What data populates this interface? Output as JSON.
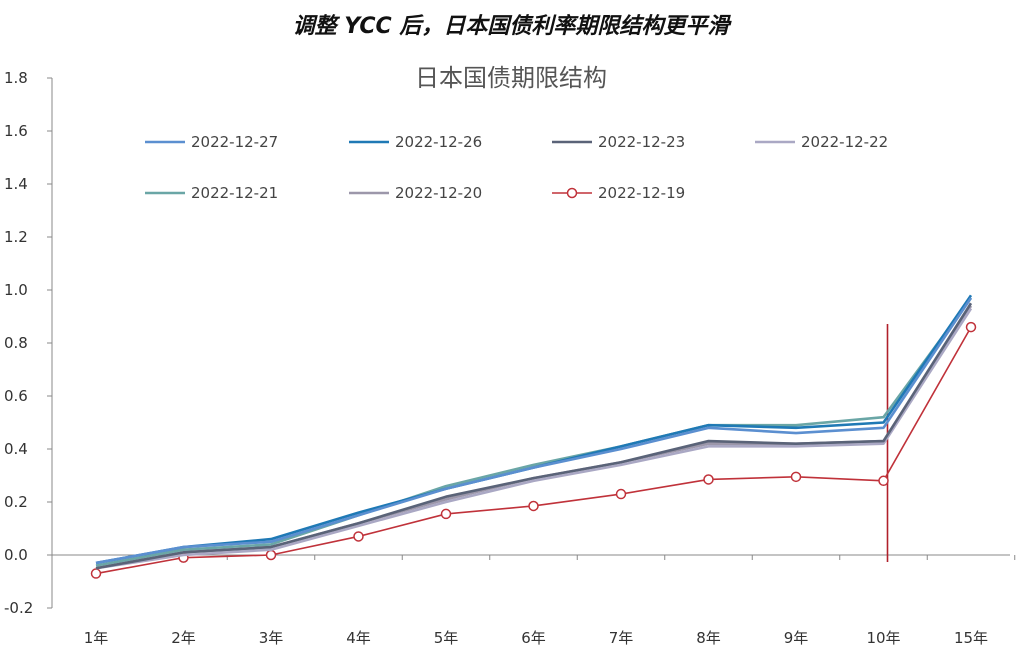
{
  "headline": "调整 YCC 后，日本国债利率期限结构更平滑",
  "chart_data": {
    "type": "line",
    "title": "日本国债期限结构",
    "xlabel": "",
    "ylabel": "",
    "categories": [
      "1年",
      "2年",
      "3年",
      "4年",
      "5年",
      "6年",
      "7年",
      "8年",
      "9年",
      "10年",
      "15年"
    ],
    "ylim": [
      -0.2,
      1.8
    ],
    "yticks": [
      "1.8",
      "1.6",
      "1.4",
      "1.2",
      "1.0",
      "0.8",
      "0.6",
      "0.4",
      "0.2",
      "0.0",
      "-0.2"
    ],
    "grid": false,
    "legend": "top",
    "vline_category": "10年",
    "series": [
      {
        "name": "2022-12-27",
        "color": "#5b8fd0",
        "markers": false,
        "values": [
          -0.03,
          0.03,
          0.05,
          0.15,
          0.25,
          0.33,
          0.4,
          0.48,
          0.46,
          0.48,
          0.97
        ]
      },
      {
        "name": "2022-12-26",
        "color": "#1f79b5",
        "markers": false,
        "values": [
          -0.03,
          0.03,
          0.06,
          0.16,
          0.25,
          0.33,
          0.41,
          0.49,
          0.48,
          0.5,
          0.98
        ]
      },
      {
        "name": "2022-12-23",
        "color": "#5a6378",
        "markers": false,
        "values": [
          -0.05,
          0.01,
          0.03,
          0.12,
          0.22,
          0.29,
          0.35,
          0.43,
          0.42,
          0.43,
          0.95
        ]
      },
      {
        "name": "2022-12-22",
        "color": "#aaa8c4",
        "markers": false,
        "values": [
          -0.05,
          0.0,
          0.02,
          0.11,
          0.2,
          0.28,
          0.34,
          0.41,
          0.41,
          0.42,
          0.93
        ]
      },
      {
        "name": "2022-12-21",
        "color": "#6aa6a6",
        "markers": false,
        "values": [
          -0.04,
          0.02,
          0.04,
          0.15,
          0.26,
          0.34,
          0.41,
          0.49,
          0.49,
          0.52,
          0.97
        ]
      },
      {
        "name": "2022-12-20",
        "color": "#9c97aa",
        "markers": false,
        "values": [
          -0.05,
          0.01,
          0.03,
          0.12,
          0.21,
          0.29,
          0.35,
          0.42,
          0.42,
          0.43,
          0.94
        ]
      },
      {
        "name": "2022-12-19",
        "color": "#c0323a",
        "markers": true,
        "values": [
          -0.07,
          -0.01,
          0.0,
          0.07,
          0.155,
          0.185,
          0.23,
          0.285,
          0.295,
          0.28,
          0.86
        ]
      }
    ]
  }
}
